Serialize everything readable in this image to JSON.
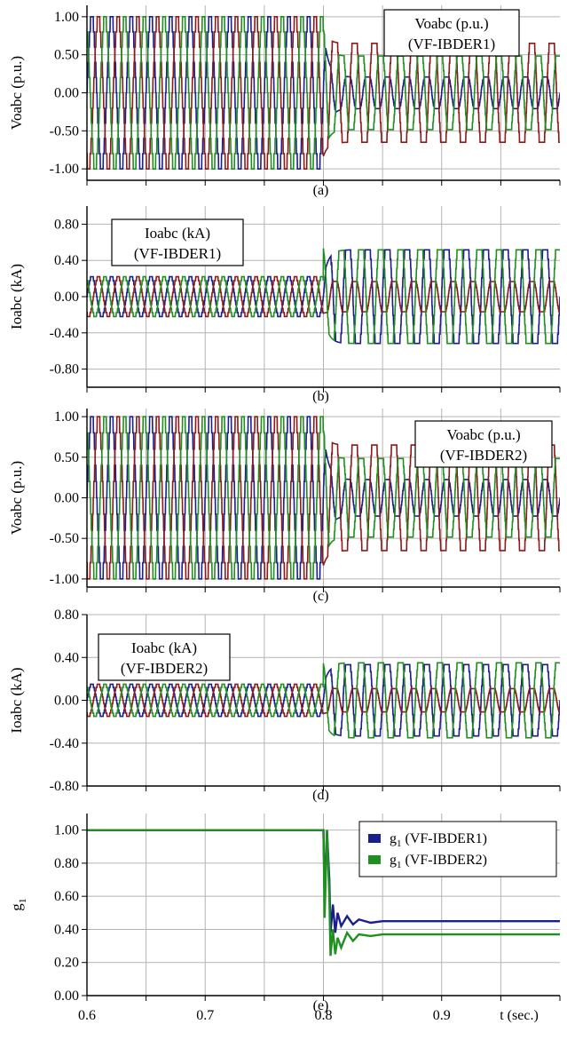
{
  "colors": {
    "blue": "#1a1f8c",
    "red": "#8b1a1a",
    "green": "#1f8f1f",
    "grid": "#b4b4b4"
  },
  "x_axis": {
    "ticks": [
      "0.6",
      "0.7",
      "0.8",
      "0.9"
    ],
    "label": "t (sec.)"
  },
  "chart_data": [
    {
      "type": "line",
      "caption": "(a)",
      "ylabel": "Voabc (p.u.)",
      "annotation": [
        "Voabc (p.u.)",
        "(VF-IBDER1)"
      ],
      "xlim": [
        0.6,
        1.0
      ],
      "ylim": [
        -1.15,
        1.15
      ],
      "yticks": [
        1.0,
        0.5,
        0.0,
        -0.5,
        -1.0
      ],
      "ytick_labels": [
        "1.00",
        "0.50",
        "0.00",
        "-0.50",
        "-1.00"
      ],
      "frequency_hz": 60,
      "event_time": 0.8,
      "series": [
        {
          "color": "blue",
          "phase_deg": 0,
          "amp_before": 1.0,
          "amp_after": 0.25
        },
        {
          "color": "red",
          "phase_deg": -120,
          "amp_before": 1.0,
          "amp_after": 0.78
        },
        {
          "color": "green",
          "phase_deg": 120,
          "amp_before": 1.0,
          "amp_after": 0.58
        }
      ]
    },
    {
      "type": "line",
      "caption": "(b)",
      "ylabel": "Ioabc (kA)",
      "annotation": [
        "Ioabc (kA)",
        "(VF-IBDER1)"
      ],
      "xlim": [
        0.6,
        1.0
      ],
      "ylim": [
        -1.0,
        1.0
      ],
      "yticks": [
        0.8,
        0.4,
        0.0,
        -0.4,
        -0.8
      ],
      "ytick_labels": [
        "0.80",
        "0.40",
        "0.00",
        "-0.40",
        "-0.80"
      ],
      "frequency_hz": 60,
      "event_time": 0.8,
      "series": [
        {
          "color": "blue",
          "phase_deg": 0,
          "amp_before": 0.22,
          "amp_after": 0.62
        },
        {
          "color": "red",
          "phase_deg": -120,
          "amp_before": 0.22,
          "amp_after": 0.2
        },
        {
          "color": "green",
          "phase_deg": 120,
          "amp_before": 0.22,
          "amp_after": 0.62
        }
      ]
    },
    {
      "type": "line",
      "caption": "(c)",
      "ylabel": "Voabc (p.u.)",
      "annotation": [
        "Voabc (p.u.)",
        "(VF-IBDER2)"
      ],
      "xlim": [
        0.6,
        1.0
      ],
      "ylim": [
        -1.1,
        1.1
      ],
      "yticks": [
        1.0,
        0.5,
        0.0,
        -0.5,
        -1.0
      ],
      "ytick_labels": [
        "1.00",
        "0.50",
        "0.00",
        "-0.50",
        "-1.00"
      ],
      "frequency_hz": 60,
      "event_time": 0.8,
      "series": [
        {
          "color": "blue",
          "phase_deg": 0,
          "amp_before": 1.0,
          "amp_after": 0.27
        },
        {
          "color": "red",
          "phase_deg": -120,
          "amp_before": 1.0,
          "amp_after": 0.78
        },
        {
          "color": "green",
          "phase_deg": 120,
          "amp_before": 1.0,
          "amp_after": 0.58
        }
      ]
    },
    {
      "type": "line",
      "caption": "(d)",
      "ylabel": "Ioabc (kA)",
      "annotation": [
        "Ioabc (kA)",
        "(VF-IBDER2)"
      ],
      "xlim": [
        0.6,
        1.0
      ],
      "ylim": [
        -0.8,
        0.8
      ],
      "yticks": [
        0.8,
        0.4,
        0.0,
        -0.4,
        -0.8
      ],
      "ytick_labels": [
        "0.80",
        "0.40",
        "0.00",
        "-0.40",
        "-0.80"
      ],
      "frequency_hz": 60,
      "event_time": 0.8,
      "series": [
        {
          "color": "blue",
          "phase_deg": 0,
          "amp_before": 0.15,
          "amp_after": 0.4
        },
        {
          "color": "red",
          "phase_deg": -120,
          "amp_before": 0.15,
          "amp_after": 0.13
        },
        {
          "color": "green",
          "phase_deg": 120,
          "amp_before": 0.15,
          "amp_after": 0.42
        }
      ]
    },
    {
      "type": "line",
      "caption": "(e)",
      "ylabel": "g1",
      "xlim": [
        0.6,
        1.0
      ],
      "ylim": [
        0.0,
        1.1
      ],
      "yticks": [
        1.0,
        0.8,
        0.6,
        0.4,
        0.2,
        0.0
      ],
      "ytick_labels": [
        "1.00",
        "0.80",
        "0.60",
        "0.40",
        "0.20",
        "0.00"
      ],
      "legend": "right",
      "series": [
        {
          "name": "g1 (VF-IBDER1)",
          "color": "blue",
          "x": [
            0.6,
            0.8,
            0.801,
            0.803,
            0.805,
            0.806,
            0.808,
            0.81,
            0.812,
            0.815,
            0.82,
            0.825,
            0.83,
            0.84,
            0.85,
            1.0
          ],
          "y": [
            1.0,
            1.0,
            0.6,
            1.0,
            0.7,
            0.38,
            0.55,
            0.38,
            0.5,
            0.42,
            0.48,
            0.43,
            0.46,
            0.44,
            0.45,
            0.45
          ]
        },
        {
          "name": "g1 (VF-IBDER2)",
          "color": "green",
          "x": [
            0.6,
            0.8,
            0.801,
            0.803,
            0.805,
            0.806,
            0.808,
            0.81,
            0.812,
            0.815,
            0.82,
            0.825,
            0.83,
            0.84,
            0.85,
            1.0
          ],
          "y": [
            1.0,
            1.0,
            0.47,
            1.0,
            0.6,
            0.24,
            0.4,
            0.25,
            0.35,
            0.29,
            0.38,
            0.33,
            0.37,
            0.36,
            0.37,
            0.37
          ]
        }
      ]
    }
  ]
}
